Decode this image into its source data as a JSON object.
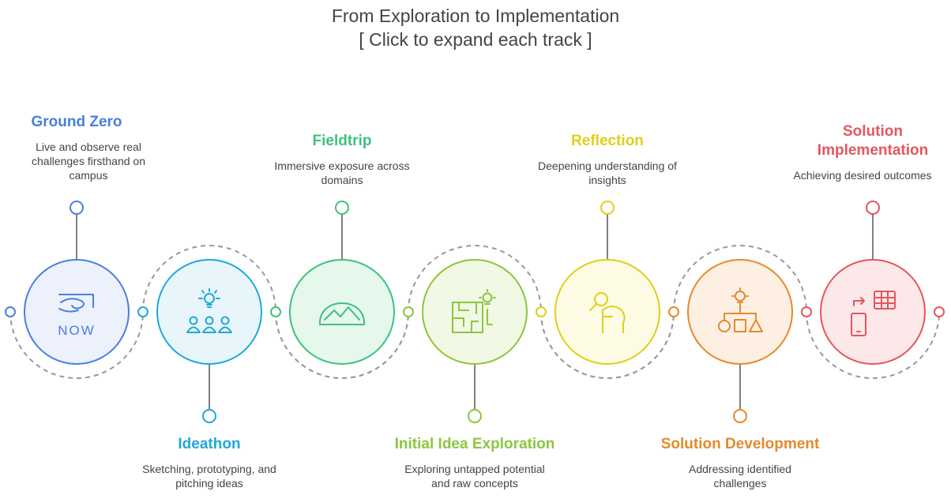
{
  "title_line1": "From Exploration to Implementation",
  "title_line2": "[ Click to expand each track ]",
  "steps": [
    {
      "title": "Ground Zero",
      "title_lines": [
        "Ground Zero"
      ],
      "desc_lines": [
        "Live and observe real",
        "challenges firsthand on",
        "campus"
      ],
      "color": "#4a7fdd",
      "fill": "#edf1fb",
      "icon": "now-logo-icon",
      "icon_text": "NOW",
      "position": "above"
    },
    {
      "title": "Ideathon",
      "title_lines": [
        "Ideathon"
      ],
      "desc_lines": [
        "Sketching, prototyping, and",
        "pitching ideas"
      ],
      "color": "#1fa8d9",
      "fill": "#e8f6fb",
      "icon": "team-idea-icon",
      "position": "below"
    },
    {
      "title": "Fieldtrip",
      "title_lines": [
        "Fieldtrip"
      ],
      "desc_lines": [
        "Immersive exposure across",
        "domains"
      ],
      "color": "#3cc27d",
      "fill": "#e6f7ec",
      "icon": "mountain-icon",
      "position": "above"
    },
    {
      "title": "Initial Idea Exploration",
      "title_lines": [
        "Initial Idea Exploration"
      ],
      "desc_lines": [
        "Exploring untapped potential",
        "and raw concepts"
      ],
      "color": "#8cc63f",
      "fill": "#f1f8e4",
      "icon": "maze-idea-icon",
      "position": "below"
    },
    {
      "title": "Reflection",
      "title_lines": [
        "Reflection"
      ],
      "desc_lines": [
        "Deepening understanding of",
        "insights"
      ],
      "color": "#dfcf1a",
      "fill": "#fdfbe3",
      "icon": "head-search-icon",
      "position": "above"
    },
    {
      "title": "Solution Development",
      "title_lines": [
        "Solution Development"
      ],
      "desc_lines": [
        "Addressing identified",
        "challenges"
      ],
      "color": "#e48a2c",
      "fill": "#fdf0e3",
      "icon": "shapes-idea-icon",
      "position": "below"
    },
    {
      "title": "Solution Implementation",
      "title_lines": [
        "Solution",
        "Implementation"
      ],
      "desc_lines": [
        "Achieving desired outcomes"
      ],
      "color": "#e4565e",
      "fill": "#fce8e9",
      "icon": "phone-grid-icon",
      "position": "above"
    }
  ]
}
